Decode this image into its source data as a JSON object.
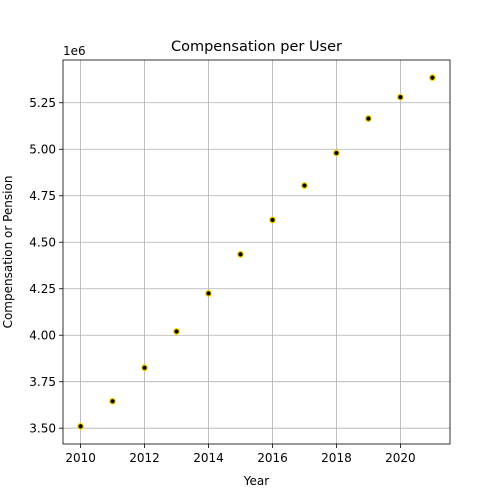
{
  "chart_data": {
    "type": "scatter",
    "title": "Compensation per User",
    "xlabel": "Year",
    "ylabel": "Compensation or Pension",
    "y_offset_label": "1e6",
    "x": [
      2010,
      2011,
      2012,
      2013,
      2014,
      2015,
      2016,
      2017,
      2018,
      2019,
      2020,
      2021
    ],
    "y": [
      3.51,
      3.645,
      3.825,
      4.02,
      4.225,
      4.435,
      4.62,
      4.805,
      4.98,
      5.165,
      5.28,
      5.385
    ],
    "y_unit_multiplier": 1000000,
    "xlim": [
      2009.45,
      2021.55
    ],
    "ylim": [
      3.415,
      5.48
    ],
    "xticks": [
      2010,
      2012,
      2014,
      2016,
      2018,
      2020
    ],
    "xtick_labels": [
      "2010",
      "2012",
      "2014",
      "2016",
      "2018",
      "2020"
    ],
    "yticks": [
      3.5,
      3.75,
      4.0,
      4.25,
      4.5,
      4.75,
      5.0,
      5.25
    ],
    "ytick_labels": [
      "3.50",
      "3.75",
      "4.00",
      "4.25",
      "4.50",
      "4.75",
      "5.00",
      "5.25"
    ],
    "grid": true,
    "marker_face_color": "#000000",
    "marker_edge_color": "#ffd700"
  }
}
